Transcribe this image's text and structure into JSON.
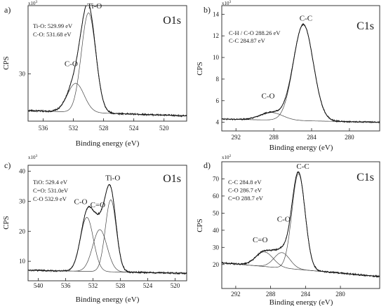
{
  "chart_data": [
    {
      "type": "line",
      "panel_label": "a)",
      "title": "O1s",
      "xlabel": "Binding energy (eV)",
      "ylabel": "CPS",
      "multiplier": "x10",
      "multiplier_exp": "3",
      "xlim": [
        538,
        517
      ],
      "ylim": [
        12,
        56
      ],
      "xticks": [
        536,
        532,
        528,
        524,
        520
      ],
      "yticks": [
        30
      ],
      "annotations": [
        "Ti-O: 529.99 eV",
        "C-O: 531.68 eV"
      ],
      "baseline": {
        "start": 16,
        "end": 14
      },
      "noise": 0.35,
      "peaks": [
        {
          "name": "C-O",
          "center": 531.68,
          "height": 11,
          "sigma": 1.1
        },
        {
          "name": "Ti-O",
          "center": 529.99,
          "height": 38,
          "sigma": 0.95
        }
      ],
      "peak_labels": [
        {
          "text": "C-O",
          "x": 532.3,
          "y": 33
        },
        {
          "text": "Ti-O",
          "x": 529.2,
          "y": 55
        }
      ]
    },
    {
      "type": "line",
      "panel_label": "b)",
      "title": "C1s",
      "xlabel": "Binding energy (eV)",
      "ylabel": "CPS",
      "multiplier": "x10",
      "multiplier_exp": "3",
      "xlim": [
        293.5,
        276.8
      ],
      "ylim": [
        3.2,
        14.8
      ],
      "xticks": [
        292,
        288,
        284,
        280
      ],
      "yticks": [
        4,
        6,
        8,
        10,
        12,
        14
      ],
      "annotations": [
        "C-H / C-O  288.26 eV",
        "C-C 284.87 eV"
      ],
      "baseline": {
        "start": 4.3,
        "end": 4.0
      },
      "noise": 0.07,
      "peaks": [
        {
          "name": "C-O",
          "center": 288.26,
          "height": 0.7,
          "sigma": 1.2
        },
        {
          "name": "C-C",
          "center": 284.87,
          "height": 8.9,
          "sigma": 1.05
        }
      ],
      "peak_labels": [
        {
          "text": "C-O",
          "x": 288.6,
          "y": 6.2
        },
        {
          "text": "C-C",
          "x": 284.6,
          "y": 13.4
        }
      ]
    },
    {
      "type": "line",
      "panel_label": "c)",
      "title": "O1s",
      "xlabel": "Binding energy (eV)",
      "ylabel": "CPS",
      "multiplier": "x10",
      "multiplier_exp": "3",
      "xlim": [
        541.5,
        518.3
      ],
      "ylim": [
        3.5,
        42
      ],
      "xticks": [
        540,
        536,
        532,
        528,
        524,
        520
      ],
      "yticks": [
        10,
        20,
        30,
        40
      ],
      "annotations": [
        "TiO: 529.4 eV",
        "C=O: 531.0eV",
        "C-O 532.9 eV"
      ],
      "baseline": {
        "start": 7,
        "end": 6
      },
      "noise": 0.3,
      "peaks": [
        {
          "name": "C-O",
          "center": 532.9,
          "height": 18,
          "sigma": 0.95
        },
        {
          "name": "C=O",
          "center": 531.0,
          "height": 14,
          "sigma": 1.05
        },
        {
          "name": "Ti-O",
          "center": 529.4,
          "height": 24,
          "sigma": 0.8
        }
      ],
      "peak_labels": [
        {
          "text": "C-O",
          "x": 533.8,
          "y": 29
        },
        {
          "text": "C=O",
          "x": 531.3,
          "y": 28
        },
        {
          "text": "Ti-O",
          "x": 529.1,
          "y": 37
        }
      ]
    },
    {
      "type": "line",
      "panel_label": "d)",
      "title": "C1s",
      "xlabel": "Binding energy (eV)",
      "ylabel": "CPS",
      "multiplier": "x10",
      "multiplier_exp": "2",
      "xlim": [
        293.6,
        275.5
      ],
      "ylim": [
        6,
        80
      ],
      "xticks": [
        292,
        288,
        284,
        280
      ],
      "yticks": [
        20,
        30,
        40,
        50,
        60,
        70
      ],
      "annotations": [
        "C-C 284.8 eV",
        "C-O 286.7 eV",
        "C=O 288.7 eV"
      ],
      "baseline": {
        "start": 21,
        "end": 13
      },
      "noise": 0.5,
      "peaks": [
        {
          "name": "C=O",
          "center": 288.7,
          "height": 8.5,
          "sigma": 1.0
        },
        {
          "name": "C-O",
          "center": 286.7,
          "height": 9,
          "sigma": 0.9
        },
        {
          "name": "C-C",
          "center": 284.8,
          "height": 56,
          "sigma": 0.75
        }
      ],
      "peak_labels": [
        {
          "text": "C=O",
          "x": 289.2,
          "y": 33
        },
        {
          "text": "C-O",
          "x": 286.5,
          "y": 45
        },
        {
          "text": "C-C",
          "x": 284.3,
          "y": 76
        }
      ]
    }
  ]
}
